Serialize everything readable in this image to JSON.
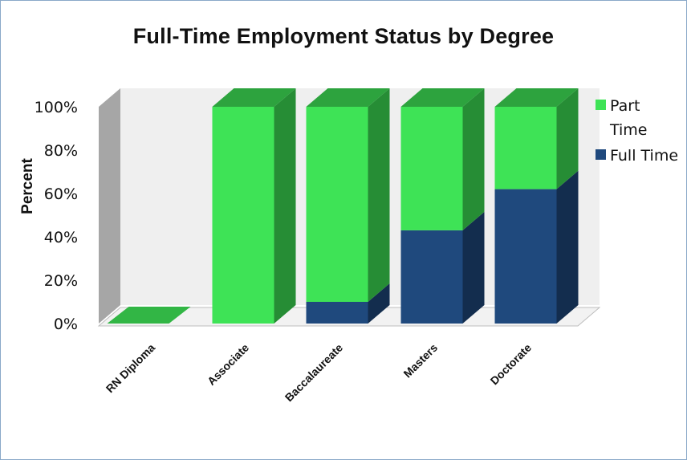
{
  "chart_data": {
    "type": "bar",
    "stacked": true,
    "three_d": true,
    "title": "Full-Time Employment Status by Degree",
    "xlabel": "",
    "ylabel": "Percent",
    "ylim": [
      0,
      100
    ],
    "y_ticks": [
      "0%",
      "20%",
      "40%",
      "60%",
      "80%",
      "100%"
    ],
    "categories": [
      "RN Diploma",
      "Associate",
      "Baccalaureate",
      "Masters",
      "Doctorate"
    ],
    "series": [
      {
        "name": "Full Time",
        "color": "#1f497d",
        "values": [
          0,
          0,
          10,
          43,
          62
        ]
      },
      {
        "name": "Part Time",
        "color": "#3ee356",
        "values": [
          0,
          100,
          90,
          57,
          38
        ]
      }
    ],
    "legend": {
      "position": "right",
      "items": [
        {
          "label_lines": [
            "Part",
            "Time"
          ],
          "color": "#3ee356"
        },
        {
          "label_lines": [
            "Full Time"
          ],
          "color": "#1f497d"
        }
      ]
    },
    "grid": false
  }
}
